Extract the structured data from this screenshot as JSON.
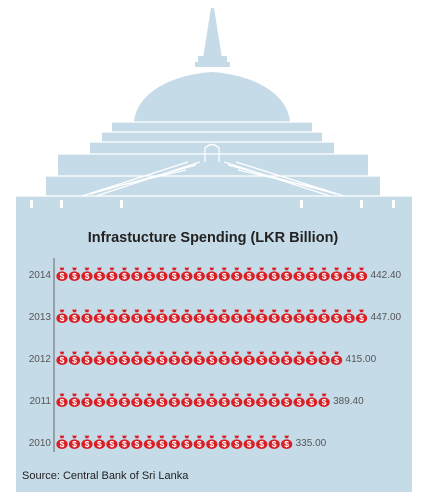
{
  "colors": {
    "sky_panel": "#c6dbe8",
    "stupa_dome": "#c6dbe8",
    "stupa_lines": "#ffffff",
    "bag": "#d81f26",
    "bag_symbol": "#ffffff",
    "axis_line": "#666666",
    "label_text": "#555555"
  },
  "icons": {
    "background": "stupa-illustration",
    "unit_mark": "money-bag-icon"
  },
  "chart_data": {
    "type": "bar",
    "title": "Infrastucture Spending (LKR Billion)",
    "categories": [
      "2014",
      "2013",
      "2012",
      "2011",
      "2010"
    ],
    "values": [
      442.4,
      447.0,
      415.0,
      389.4,
      335.0
    ],
    "value_labels": [
      "442.40",
      "447.00",
      "415.00",
      "389.40",
      "335.00"
    ],
    "xlabel": "",
    "ylabel": "",
    "xlim": [
      0,
      470
    ],
    "grid": false,
    "legend": "none",
    "mark": "money-bag pictogram"
  },
  "source": "Source: Central Bank of Sri Lanka"
}
